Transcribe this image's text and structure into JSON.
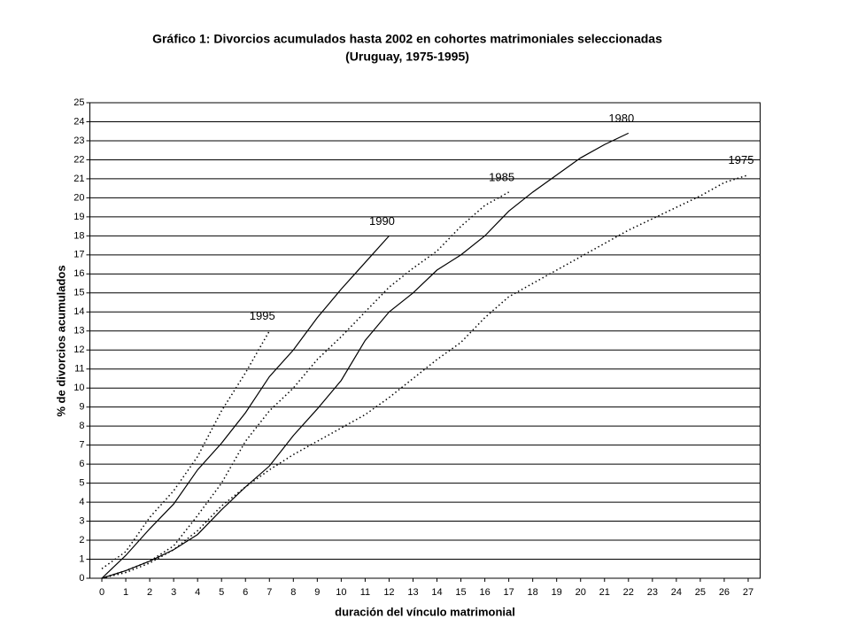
{
  "chart_data": {
    "type": "line",
    "title": "Gráfico 1: Divorcios acumulados hasta 2002 en cohortes matrimoniales seleccionadas",
    "subtitle": "(Uruguay, 1975-1995)",
    "x_label": "duración del vínculo matrimonial",
    "y_label": "% de divorcios acumulados",
    "x": [
      0,
      1,
      2,
      3,
      4,
      5,
      6,
      7,
      8,
      9,
      10,
      11,
      12,
      13,
      14,
      15,
      16,
      17,
      18,
      19,
      20,
      21,
      22,
      23,
      24,
      25,
      26,
      27
    ],
    "series": [
      {
        "name": "1995",
        "color": "#000000",
        "style": "dotted",
        "values": [
          0.5,
          1.4,
          3.2,
          4.6,
          6.4,
          8.8,
          10.8,
          13,
          null,
          null,
          null,
          null,
          null,
          null,
          null,
          null,
          null,
          null,
          null,
          null,
          null,
          null,
          null,
          null,
          null,
          null,
          null,
          null
        ]
      },
      {
        "name": "1990",
        "color": "#000000",
        "style": "solid",
        "values": [
          0,
          1.2,
          2.6,
          3.9,
          5.7,
          7.1,
          8.7,
          10.6,
          12,
          13.7,
          15.2,
          16.6,
          18,
          null,
          null,
          null,
          null,
          null,
          null,
          null,
          null,
          null,
          null,
          null,
          null,
          null,
          null,
          null
        ]
      },
      {
        "name": "1985",
        "color": "#000000",
        "style": "dotted",
        "values": [
          0,
          0.4,
          0.9,
          1.7,
          3.3,
          5,
          7.2,
          8.8,
          10,
          11.5,
          12.7,
          14,
          15.3,
          16.3,
          17.2,
          18.5,
          19.6,
          20.3,
          null,
          null,
          null,
          null,
          null,
          null,
          null,
          null,
          null,
          null
        ]
      },
      {
        "name": "1980",
        "color": "#000000",
        "style": "solid",
        "values": [
          0,
          0.4,
          0.9,
          1.5,
          2.3,
          3.6,
          4.8,
          5.9,
          7.5,
          8.9,
          10.4,
          12.5,
          14,
          15,
          16.2,
          17,
          18,
          19.3,
          20.3,
          21.2,
          22.1,
          22.8,
          23.4,
          null,
          null,
          null,
          null,
          null
        ]
      },
      {
        "name": "1975",
        "color": "#000000",
        "style": "dotted",
        "values": [
          0,
          0.3,
          0.8,
          1.5,
          2.5,
          3.8,
          4.8,
          5.7,
          6.5,
          7.2,
          7.9,
          8.6,
          9.5,
          10.5,
          11.5,
          12.4,
          13.7,
          14.8,
          15.5,
          16.2,
          16.9,
          17.6,
          18.3,
          18.9,
          19.5,
          20.1,
          20.8,
          21.2
        ]
      }
    ],
    "xlim": [
      -0.5,
      27.5
    ],
    "xticks": [
      0,
      1,
      2,
      3,
      4,
      5,
      6,
      7,
      8,
      9,
      10,
      11,
      12,
      13,
      14,
      15,
      16,
      17,
      18,
      19,
      20,
      21,
      22,
      23,
      24,
      25,
      26,
      27
    ],
    "ylim": [
      0,
      25
    ],
    "yticks": [
      0,
      1,
      2,
      3,
      4,
      5,
      6,
      7,
      8,
      9,
      10,
      11,
      12,
      13,
      14,
      15,
      16,
      17,
      18,
      19,
      20,
      21,
      22,
      23,
      24,
      25
    ],
    "grid": true
  }
}
